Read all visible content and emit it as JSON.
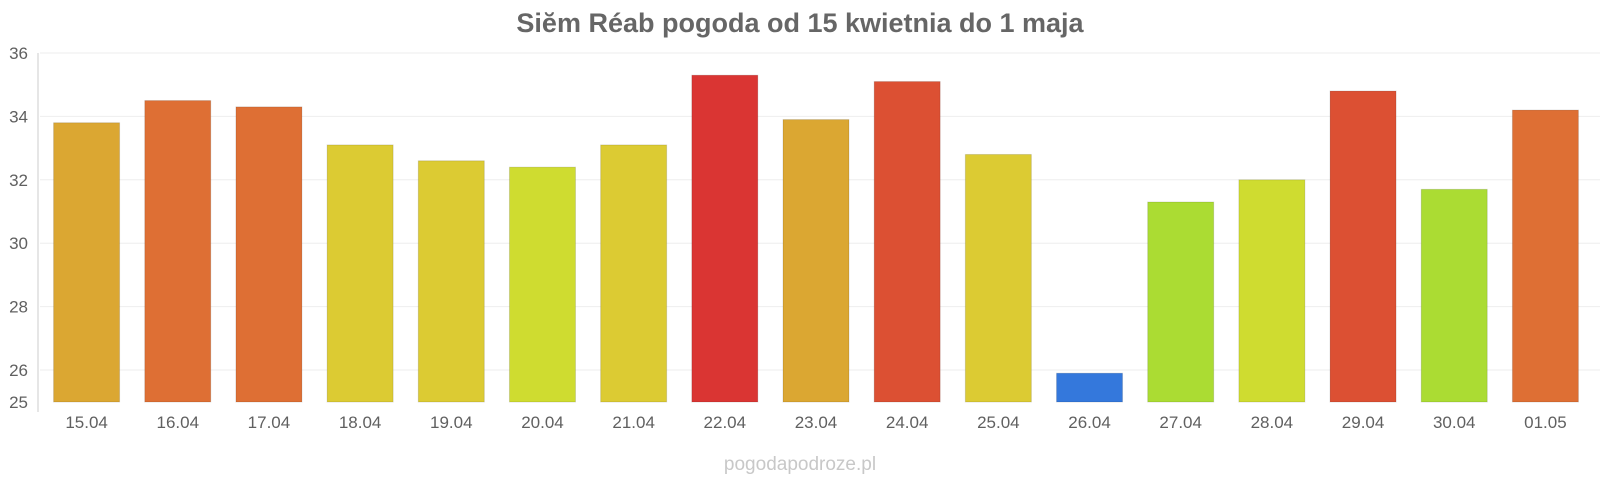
{
  "chart_data": {
    "type": "bar",
    "title": "Siĕm Réab pogoda od 15 kwietnia do 1 maja",
    "xlabel": "",
    "ylabel": "",
    "ylim": [
      25,
      36
    ],
    "yticks": [
      25,
      26,
      28,
      30,
      32,
      34,
      36
    ],
    "grid": true,
    "categories": [
      "15.04",
      "16.04",
      "17.04",
      "18.04",
      "19.04",
      "20.04",
      "21.04",
      "22.04",
      "23.04",
      "24.04",
      "25.04",
      "26.04",
      "27.04",
      "28.04",
      "29.04",
      "30.04",
      "01.05"
    ],
    "values": [
      33.8,
      34.5,
      34.3,
      33.1,
      32.6,
      32.4,
      33.1,
      35.3,
      33.9,
      35.1,
      32.8,
      25.9,
      31.3,
      32.0,
      34.8,
      31.7,
      34.2
    ],
    "colors": [
      "#dba732",
      "#de6f34",
      "#de6f34",
      "#dccb33",
      "#dccb33",
      "#cfdc30",
      "#dccb33",
      "#da3533",
      "#dba732",
      "#dc5033",
      "#dccb33",
      "#3478dc",
      "#abdc33",
      "#cfdc30",
      "#dc5033",
      "#abdc33",
      "#de6f34"
    ]
  },
  "credit": "pogodapodroze.pl"
}
